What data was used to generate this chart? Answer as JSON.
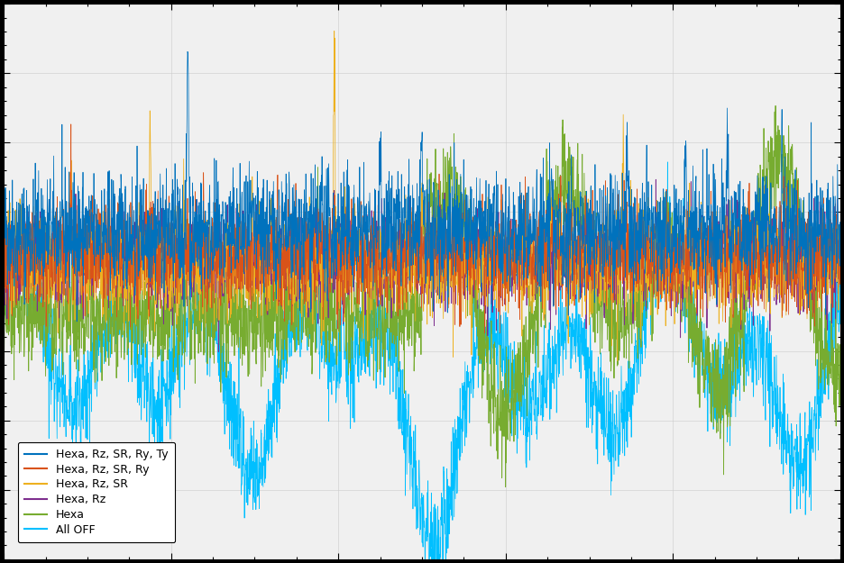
{
  "title": "",
  "figure_facecolor": "#000000",
  "axes_facecolor": "#f0f0f0",
  "axes_edgecolor": "#000000",
  "grid_color": "#cccccc",
  "tick_color": "#000000",
  "legend_labels": [
    "Hexa, Rz, SR, Ry, Ty",
    "Hexa, Rz, SR, Ry",
    "Hexa, Rz, SR",
    "Hexa, Rz",
    "Hexa",
    "All OFF"
  ],
  "line_colors": [
    "#0072bd",
    "#d95319",
    "#edb120",
    "#7e2f8e",
    "#77ac30",
    "#00bfff"
  ],
  "n_points": 3000,
  "ylim": [
    -1.0,
    1.0
  ],
  "figsize": [
    9.36,
    6.25
  ],
  "dpi": 100
}
